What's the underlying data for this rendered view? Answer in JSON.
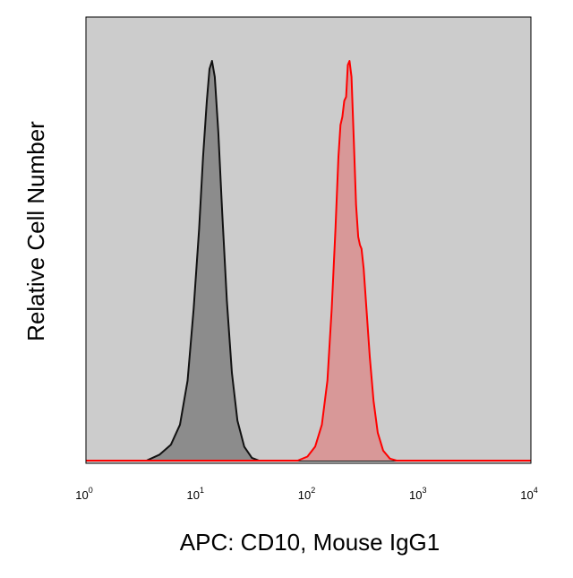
{
  "chart_data": {
    "type": "area",
    "xlabel": "APC: CD10, Mouse IgG1",
    "ylabel": "Relative Cell Number",
    "x_scale": "log",
    "xlim": [
      1,
      10000
    ],
    "ylim": [
      0,
      100
    ],
    "grid": false,
    "legend": "none",
    "background_color": "#cccccc",
    "x_ticks": [
      {
        "base": "10",
        "exp": "0",
        "value": 1
      },
      {
        "base": "10",
        "exp": "1",
        "value": 10
      },
      {
        "base": "10",
        "exp": "2",
        "value": 100
      },
      {
        "base": "10",
        "exp": "3",
        "value": 1000
      },
      {
        "base": "10",
        "exp": "4",
        "value": 10000
      }
    ],
    "series": [
      {
        "line_color": "#111111",
        "fill_color": "#8c8c8c",
        "points": [
          [
            1,
            0
          ],
          [
            3.5,
            0
          ],
          [
            4.6,
            1.5
          ],
          [
            5.8,
            4
          ],
          [
            7,
            9
          ],
          [
            8.2,
            20
          ],
          [
            9.3,
            38
          ],
          [
            10.4,
            58
          ],
          [
            11.3,
            76
          ],
          [
            12.2,
            90
          ],
          [
            12.9,
            98
          ],
          [
            13.6,
            100
          ],
          [
            14.4,
            96
          ],
          [
            15.5,
            82
          ],
          [
            16.8,
            62
          ],
          [
            18.5,
            40
          ],
          [
            20.5,
            22
          ],
          [
            23,
            10
          ],
          [
            26.5,
            3.5
          ],
          [
            31,
            0.7
          ],
          [
            36,
            0
          ],
          [
            10000,
            0
          ]
        ]
      },
      {
        "line_color": "#ff0000",
        "fill_color": "#d89898",
        "points": [
          [
            1,
            0
          ],
          [
            80,
            0
          ],
          [
            98,
            1
          ],
          [
            115,
            3.5
          ],
          [
            132,
            9
          ],
          [
            148,
            20
          ],
          [
            162,
            38
          ],
          [
            175,
            58
          ],
          [
            186,
            76
          ],
          [
            194,
            84
          ],
          [
            202,
            86
          ],
          [
            210,
            90
          ],
          [
            218,
            91
          ],
          [
            226,
            99
          ],
          [
            234,
            100
          ],
          [
            244,
            96
          ],
          [
            256,
            80
          ],
          [
            268,
            64
          ],
          [
            280,
            56
          ],
          [
            290,
            54
          ],
          [
            300,
            53
          ],
          [
            314,
            48
          ],
          [
            332,
            38
          ],
          [
            356,
            26
          ],
          [
            385,
            15
          ],
          [
            420,
            7
          ],
          [
            470,
            2.5
          ],
          [
            540,
            0.5
          ],
          [
            620,
            0
          ],
          [
            10000,
            0
          ]
        ]
      }
    ]
  }
}
